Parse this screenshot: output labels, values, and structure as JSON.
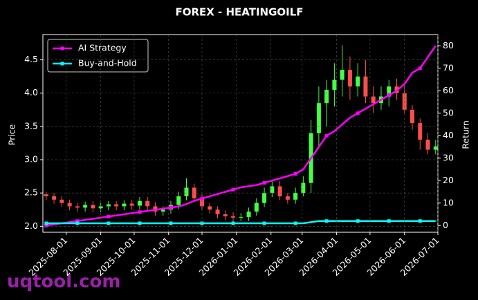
{
  "chart_data": {
    "type": "candlestick",
    "title": "FOREX - HEATINGOILF",
    "ylabel": "Price",
    "y2label": "Return",
    "watermark": "uqtool.com",
    "x": [
      "2025-07-14",
      "2025-07-21",
      "2025-07-28",
      "2025-08-04",
      "2025-08-11",
      "2025-08-18",
      "2025-08-25",
      "2025-09-01",
      "2025-09-08",
      "2025-09-15",
      "2025-09-22",
      "2025-09-29",
      "2025-10-06",
      "2025-10-13",
      "2025-10-20",
      "2025-10-27",
      "2025-11-03",
      "2025-11-10",
      "2025-11-17",
      "2025-11-24",
      "2025-12-01",
      "2025-12-08",
      "2025-12-15",
      "2025-12-22",
      "2025-12-29",
      "2026-01-05",
      "2026-01-12",
      "2026-01-19",
      "2026-01-26",
      "2026-02-02",
      "2026-02-09",
      "2026-02-16",
      "2026-02-23",
      "2026-03-02",
      "2026-03-09",
      "2026-03-16",
      "2026-03-23",
      "2026-03-30",
      "2026-04-06",
      "2026-04-13",
      "2026-04-20",
      "2026-04-27",
      "2026-05-04",
      "2026-05-11",
      "2026-05-18",
      "2026-05-25",
      "2026-06-01",
      "2026-06-08",
      "2026-06-15",
      "2026-06-22",
      "2026-06-29"
    ],
    "open": [
      2.48,
      2.45,
      2.4,
      2.35,
      2.3,
      2.28,
      2.32,
      2.27,
      2.3,
      2.33,
      2.3,
      2.34,
      2.31,
      2.38,
      2.3,
      2.22,
      2.25,
      2.32,
      2.45,
      2.58,
      2.42,
      2.3,
      2.25,
      2.18,
      2.15,
      2.13,
      2.14,
      2.22,
      2.35,
      2.5,
      2.6,
      2.45,
      2.4,
      2.5,
      2.65,
      3.4,
      3.85,
      4.05,
      4.2,
      4.35,
      4.1,
      4.25,
      3.95,
      3.85,
      3.95,
      4.1,
      4.0,
      3.75,
      3.55,
      3.3,
      3.15
    ],
    "high": [
      2.52,
      2.5,
      2.45,
      2.4,
      2.35,
      2.37,
      2.38,
      2.35,
      2.38,
      2.38,
      2.39,
      2.4,
      2.44,
      2.44,
      2.36,
      2.3,
      2.38,
      2.52,
      2.72,
      2.64,
      2.48,
      2.35,
      2.3,
      2.24,
      2.21,
      2.2,
      2.28,
      2.42,
      2.58,
      2.7,
      2.68,
      2.5,
      2.58,
      2.75,
      3.6,
      4.1,
      4.2,
      4.45,
      4.72,
      4.55,
      4.45,
      4.5,
      4.1,
      4.1,
      4.2,
      4.22,
      4.12,
      3.82,
      3.62,
      3.4,
      3.3
    ],
    "low": [
      2.39,
      2.34,
      2.29,
      2.24,
      2.22,
      2.22,
      2.21,
      2.21,
      2.24,
      2.24,
      2.24,
      2.25,
      2.25,
      2.24,
      2.16,
      2.16,
      2.19,
      2.26,
      2.39,
      2.36,
      2.24,
      2.19,
      2.12,
      2.09,
      2.07,
      2.08,
      2.08,
      2.16,
      2.29,
      2.44,
      2.39,
      2.34,
      2.34,
      2.45,
      2.5,
      3.2,
      3.5,
      3.8,
      3.95,
      3.9,
      3.95,
      3.85,
      3.7,
      3.75,
      3.8,
      3.9,
      3.7,
      3.45,
      3.15,
      3.08,
      3.08
    ],
    "close": [
      2.45,
      2.4,
      2.35,
      2.3,
      2.28,
      2.32,
      2.27,
      2.3,
      2.33,
      2.3,
      2.34,
      2.31,
      2.38,
      2.3,
      2.22,
      2.25,
      2.32,
      2.45,
      2.58,
      2.42,
      2.3,
      2.25,
      2.18,
      2.15,
      2.13,
      2.14,
      2.22,
      2.35,
      2.5,
      2.6,
      2.45,
      2.4,
      2.5,
      2.65,
      3.4,
      3.85,
      4.05,
      4.2,
      4.35,
      4.1,
      4.25,
      3.95,
      3.85,
      3.95,
      4.1,
      4.0,
      3.75,
      3.55,
      3.3,
      3.15,
      3.2
    ],
    "up_color": "#44ff44",
    "down_color": "#ff4d4d",
    "series": [
      {
        "name": "AI Strategy",
        "color": "#ff00ff",
        "axis": "y2",
        "values": [
          0,
          0.5,
          1,
          1.5,
          2,
          2.5,
          3,
          3.5,
          4,
          4.5,
          5,
          5.5,
          6,
          6.5,
          7,
          7.5,
          8,
          8.5,
          9.5,
          11,
          12,
          13,
          14,
          15,
          16,
          17,
          17.5,
          18,
          19,
          20,
          21,
          22,
          23,
          25,
          30,
          35,
          40,
          42,
          45,
          48,
          50,
          52,
          54,
          56,
          58,
          60,
          63,
          68,
          70,
          75,
          80
        ]
      },
      {
        "name": "Buy-and-Hold",
        "color": "#00ffff",
        "axis": "y2",
        "values": [
          1,
          1,
          1,
          1,
          1,
          1,
          1,
          1,
          1,
          1,
          1,
          1,
          1,
          1,
          1,
          1,
          1,
          1,
          1,
          1,
          1,
          1,
          1,
          1,
          1,
          1,
          1,
          1,
          1,
          1,
          1,
          1,
          1,
          1,
          1.5,
          2,
          2,
          2,
          2,
          2,
          2,
          2,
          2,
          2,
          2,
          2,
          2,
          2,
          2,
          2,
          2
        ]
      }
    ],
    "xlim": [
      "2025-07-11",
      "2026-07-01"
    ],
    "xticks": [
      "2025-08-01",
      "2025-09-01",
      "2025-10-01",
      "2025-11-01",
      "2025-12-01",
      "2026-01-01",
      "2026-02-01",
      "2026-03-01",
      "2026-04-01",
      "2026-05-01",
      "2026-06-01",
      "2026-07-01"
    ],
    "ylim": [
      1.91,
      4.88
    ],
    "yticks": [
      {
        "value": 2,
        "label": "2.0"
      },
      2.5,
      {
        "value": 3,
        "label": "3.0"
      },
      3.5,
      {
        "value": 4,
        "label": "4.0"
      },
      4.5
    ],
    "y2lim": [
      -3,
      85
    ],
    "y2ticks": [
      0,
      10,
      20,
      30,
      40,
      50,
      60,
      70,
      80
    ],
    "grid": true,
    "legend": "upper left"
  }
}
